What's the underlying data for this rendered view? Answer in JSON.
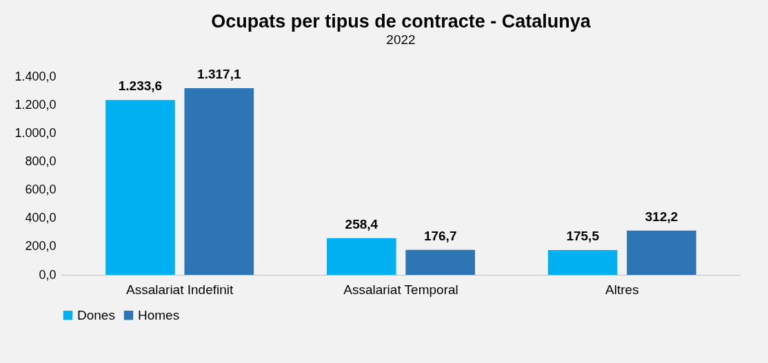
{
  "chart_data": {
    "type": "bar",
    "title": "Ocupats per tipus de contracte - Catalunya",
    "subtitle": "2022",
    "categories": [
      "Assalariat Indefinit",
      "Assalariat Temporal",
      "Altres"
    ],
    "series": [
      {
        "name": "Dones",
        "color": "#00b0f0",
        "values": [
          1233.6,
          258.4,
          175.5
        ],
        "value_labels": [
          "1.233,6",
          "258,4",
          "175,5"
        ]
      },
      {
        "name": "Homes",
        "color": "#2e75b6",
        "values": [
          1317.1,
          176.7,
          312.2
        ],
        "value_labels": [
          "1.317,1",
          "176,7",
          "312,2"
        ]
      }
    ],
    "ylim": [
      0,
      1400
    ],
    "yticks": [
      {
        "value": 0,
        "label": "0,0"
      },
      {
        "value": 200,
        "label": "200,0"
      },
      {
        "value": 400,
        "label": "400,0"
      },
      {
        "value": 600,
        "label": "600,0"
      },
      {
        "value": 800,
        "label": "800,0"
      },
      {
        "value": 1000,
        "label": "1.000,0"
      },
      {
        "value": 1200,
        "label": "1.200,0"
      },
      {
        "value": 1400,
        "label": "1.400,0"
      }
    ],
    "grid": false,
    "legend": "bottom"
  }
}
